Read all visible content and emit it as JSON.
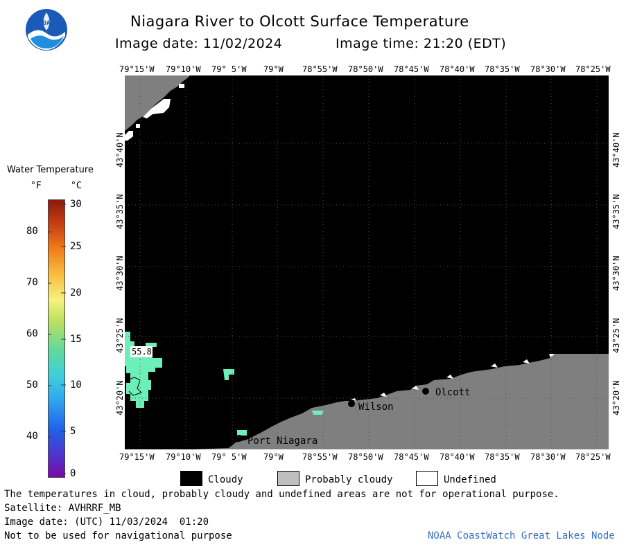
{
  "logo": {
    "text": "NOAA"
  },
  "header": {
    "title": "Niagara River to Olcott Surface Temperature",
    "image_date": "Image date: 11/02/2024",
    "image_time": "Image time: 21:20 (EDT)"
  },
  "legend": {
    "title": "Water Temperature",
    "unit_f": "°F",
    "unit_c": "°C",
    "fahrenheit_ticks": [
      "80",
      "70",
      "60",
      "50",
      "40"
    ],
    "celsius_ticks": [
      "30",
      "25",
      "20",
      "15",
      "10",
      "5",
      "0"
    ]
  },
  "map": {
    "lon_labels": [
      "79°15'W",
      "79°10'W",
      "79° 5'W",
      "79°W",
      "78°55'W",
      "78°50'W",
      "78°45'W",
      "78°40'W",
      "78°35'W",
      "78°30'W",
      "78°25'W"
    ],
    "lat_labels": [
      "43°40'N",
      "43°35'N",
      "43°30'N",
      "43°25'N",
      "43°20'N"
    ],
    "places": {
      "olcott": "Olcott",
      "wilson": "Wilson",
      "port_niagara": "Port Niagara"
    },
    "temp_reading": "55.8",
    "colors": {
      "cloudy": "#000000",
      "probably_cloudy": "#7f7f7f",
      "undefined": "#ffffff",
      "water": "#6cf0b8"
    }
  },
  "key": {
    "cloudy": "Cloudy",
    "probably_cloudy": "Probably cloudy",
    "undefined": "Undefined"
  },
  "footer": {
    "note": "The temperatures in cloud, probably cloudy and undefined areas are not for operational purpose.",
    "satellite": "Satellite: AVHRRF_MB",
    "utc_date": "Image date: (UTC) 11/03/2024  01:20",
    "nav_note": "Not to be used for navigational purpose",
    "credit": "NOAA CoastWatch Great Lakes Node"
  }
}
